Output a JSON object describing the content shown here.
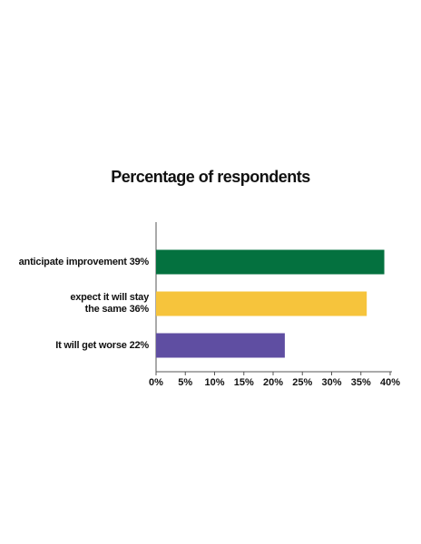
{
  "chart_data": {
    "type": "hbar",
    "title": "Percentage of respondents",
    "categories": [
      "anticipate improvement 39%",
      "expect it will stay\nthe same 36%",
      "It will get worse 22%"
    ],
    "values": [
      39,
      36,
      22
    ],
    "colors": [
      "#04713f",
      "#f6c43c",
      "#5f4ea2"
    ],
    "xlim": [
      0,
      40
    ],
    "xticks": [
      {
        "value": 0,
        "label": "0%"
      },
      {
        "value": 5,
        "label": "5%"
      },
      {
        "value": 10,
        "label": "10%"
      },
      {
        "value": 15,
        "label": "15%"
      },
      {
        "value": 20,
        "label": "20%"
      },
      {
        "value": 25,
        "label": "25%"
      },
      {
        "value": 30,
        "label": "30%"
      },
      {
        "value": 35,
        "label": "35%"
      },
      {
        "value": 40,
        "label": "40%"
      }
    ]
  }
}
